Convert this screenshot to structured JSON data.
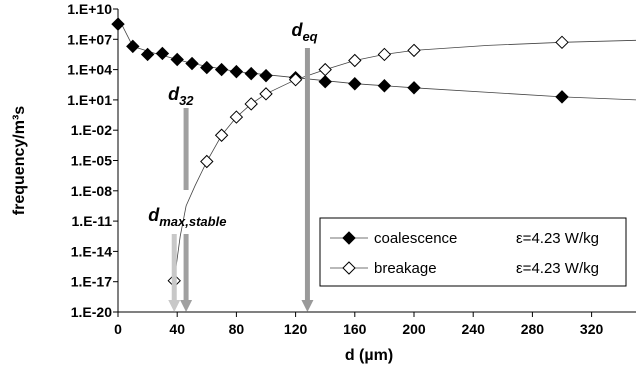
{
  "chart_data": {
    "type": "scatter",
    "xlabel": "d (µm)",
    "ylabel": "frequency/m³s",
    "xlim": [
      0,
      350
    ],
    "ylim_log10": [
      -20,
      10
    ],
    "x_ticks": [
      {
        "value": 0,
        "label": "0"
      },
      {
        "value": 40,
        "label": "40"
      },
      {
        "value": 80,
        "label": "80"
      },
      {
        "value": 120,
        "label": "120"
      },
      {
        "value": 160,
        "label": "160"
      },
      {
        "value": 200,
        "label": "200"
      },
      {
        "value": 240,
        "label": "240"
      },
      {
        "value": 280,
        "label": "280"
      },
      {
        "value": 320,
        "label": "320"
      }
    ],
    "y_ticks": [
      {
        "exp": 10,
        "label": "1.E+10"
      },
      {
        "exp": 7,
        "label": "1.E+07"
      },
      {
        "exp": 4,
        "label": "1.E+04"
      },
      {
        "exp": 1,
        "label": "1.E+01"
      },
      {
        "exp": -2,
        "label": "1.E-02"
      },
      {
        "exp": -5,
        "label": "1.E-05"
      },
      {
        "exp": -8,
        "label": "1.E-08"
      },
      {
        "exp": -11,
        "label": "1.E-11"
      },
      {
        "exp": -14,
        "label": "1.E-14"
      },
      {
        "exp": -17,
        "label": "1.E-17"
      },
      {
        "exp": -20,
        "label": "1.E-20"
      }
    ],
    "series": [
      {
        "name": "coalescence",
        "marker": "filled-diamond",
        "color": "#000000",
        "x": [
          0,
          10,
          20,
          30,
          40,
          50,
          60,
          70,
          80,
          90,
          100,
          120,
          140,
          160,
          180,
          200,
          300
        ],
        "y_log10": [
          8.5,
          6.3,
          5.5,
          5.6,
          5.0,
          4.6,
          4.2,
          4.0,
          3.8,
          3.6,
          3.4,
          3.2,
          2.8,
          2.6,
          2.4,
          2.2,
          1.3
        ],
        "curve_log10": [
          [
            0,
            9.2
          ],
          [
            10,
            6.3
          ],
          [
            25,
            5.6
          ],
          [
            50,
            4.6
          ],
          [
            80,
            3.8
          ],
          [
            120,
            3.2
          ],
          [
            160,
            2.6
          ],
          [
            200,
            2.2
          ],
          [
            300,
            1.3
          ],
          [
            350,
            1.0
          ]
        ]
      },
      {
        "name": "breakage",
        "marker": "open-diamond",
        "color": "#000000",
        "x": [
          38,
          60,
          70,
          80,
          90,
          100,
          120,
          140,
          160,
          180,
          200,
          300
        ],
        "y_log10": [
          -16.9,
          -5.1,
          -2.5,
          -0.7,
          0.6,
          1.6,
          3.0,
          4.0,
          4.9,
          5.5,
          5.9,
          6.7
        ],
        "curve_log10": [
          [
            38,
            -16.9
          ],
          [
            42,
            -12.5
          ],
          [
            46,
            -9.5
          ],
          [
            52,
            -7.5
          ],
          [
            60,
            -5.1
          ],
          [
            70,
            -2.5
          ],
          [
            80,
            -0.7
          ],
          [
            90,
            0.6
          ],
          [
            100,
            1.6
          ],
          [
            120,
            3.0
          ],
          [
            140,
            4.0
          ],
          [
            160,
            4.9
          ],
          [
            180,
            5.5
          ],
          [
            200,
            5.9
          ],
          [
            250,
            6.4
          ],
          [
            300,
            6.7
          ],
          [
            350,
            6.9
          ]
        ]
      }
    ],
    "legend": {
      "position": "lower-right",
      "entries": [
        {
          "label": "coalescence",
          "eps": "ε=4.23 W/kg"
        },
        {
          "label": "breakage",
          "eps": "ε=4.23 W/kg"
        }
      ]
    },
    "annotations": [
      {
        "id": "deq",
        "base": "d",
        "sub": "eq",
        "x": 128,
        "color": "#9a9a9a"
      },
      {
        "id": "d32",
        "base": "d",
        "sub": "32",
        "x": 46,
        "color": "#a0a0a0"
      },
      {
        "id": "dmax",
        "base": "d",
        "sub": "max,stable",
        "x": 38,
        "color": "#c8c8c8"
      }
    ]
  }
}
